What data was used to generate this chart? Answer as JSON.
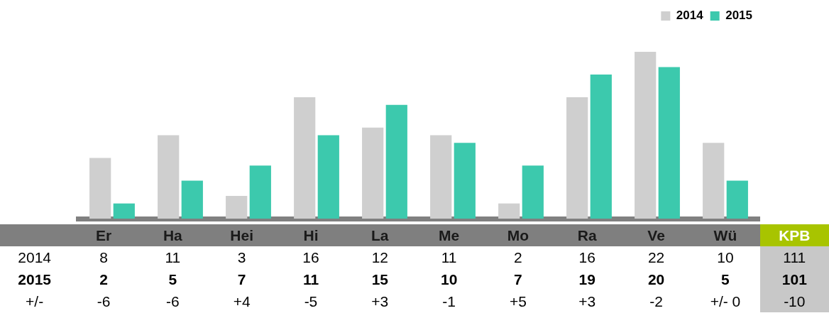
{
  "chart_data": {
    "type": "bar",
    "categories": [
      "Er",
      "Ha",
      "Hei",
      "Hi",
      "La",
      "Me",
      "Mo",
      "Ra",
      "Ve",
      "Wü"
    ],
    "series": [
      {
        "name": "2014",
        "color": "#cfcfcf",
        "values": [
          8,
          11,
          3,
          16,
          12,
          11,
          2,
          16,
          22,
          10
        ]
      },
      {
        "name": "2015",
        "color": "#3cc9ad",
        "values": [
          2,
          5,
          7,
          11,
          15,
          10,
          7,
          19,
          20,
          5
        ]
      }
    ],
    "data_labels": true,
    "legend": "top right",
    "tick_labels": false,
    "grid": false,
    "annotations": [
      "KPB",
      "111",
      "101",
      "+/-",
      "-6",
      "-6",
      "+4",
      "-5",
      "+3",
      "-1",
      "+5",
      "+3",
      "-2",
      "+/- 0",
      "-10"
    ]
  }
}
